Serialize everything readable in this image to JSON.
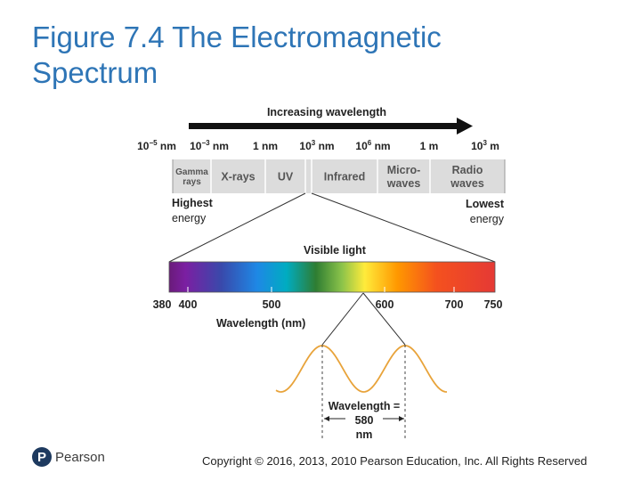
{
  "title_line1": "Figure 7.4 The Electromagnetic",
  "title_line2": "Spectrum",
  "arrow_label": "Increasing wavelength",
  "scale_ticks": [
    {
      "base": "10",
      "exp": "−5",
      "unit": "nm"
    },
    {
      "base": "10",
      "exp": "−3",
      "unit": "nm"
    },
    {
      "base": "1",
      "exp": "",
      "unit": "nm"
    },
    {
      "base": "10",
      "exp": "3",
      "unit": "nm"
    },
    {
      "base": "10",
      "exp": "6",
      "unit": "nm"
    },
    {
      "base": "1",
      "exp": "",
      "unit": "m"
    },
    {
      "base": "10",
      "exp": "3",
      "unit": "m"
    }
  ],
  "regions": [
    {
      "lines": [
        "Gamma",
        "rays"
      ]
    },
    {
      "lines": [
        "X-rays"
      ]
    },
    {
      "lines": [
        "UV"
      ]
    },
    {
      "lines": [
        ""
      ]
    },
    {
      "lines": [
        "Infrared"
      ]
    },
    {
      "lines": [
        "Micro-",
        "waves"
      ]
    },
    {
      "lines": [
        "Radio",
        "waves"
      ]
    }
  ],
  "highest_energy": [
    "Highest",
    "energy"
  ],
  "lowest_energy": [
    "Lowest",
    "energy"
  ],
  "visible_label": "Visible light",
  "visible_ticks": [
    "380",
    "400",
    "500",
    "600",
    "700",
    "750"
  ],
  "visible_axis_label": "Wavelength (nm)",
  "wave_label_line1": "Wavelength =",
  "wave_label_line2": "580",
  "wave_label_line3": "nm",
  "colors": {
    "title": "#2e75b6",
    "band": "#dcdcdc",
    "wave": "#e8a33a"
  },
  "brand": {
    "mark": "P",
    "name": "Pearson"
  },
  "copyright": "Copyright © 2016, 2013, 2010 Pearson Education, Inc. All Rights Reserved"
}
